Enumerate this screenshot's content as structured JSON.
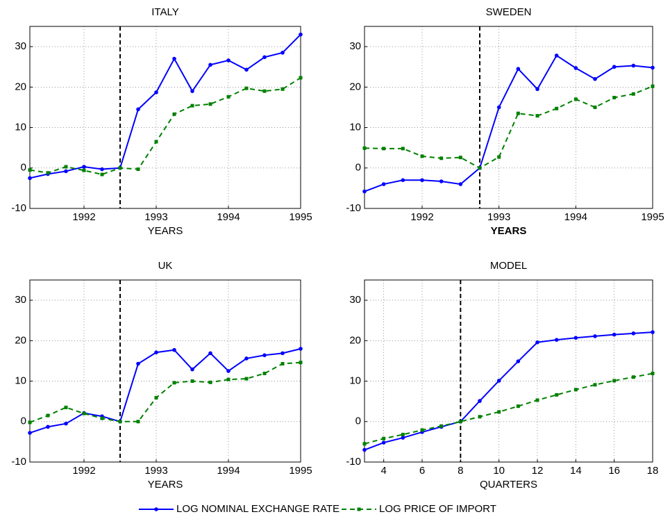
{
  "legend": [
    "LOG NOMINAL EXCHANGE RATE",
    "LOG PRICE OF IMPORT"
  ],
  "chart_data": [
    {
      "type": "line",
      "title": "ITALY",
      "xlabel": "YEARS",
      "grid": true,
      "vline": 1992.5,
      "xlim": [
        1991.25,
        1995
      ],
      "xticks": [
        1992,
        1993,
        1994,
        1995
      ],
      "ylim": [
        -10,
        35
      ],
      "yticks": [
        -10,
        0,
        10,
        20,
        30
      ],
      "x": [
        1991.25,
        1991.5,
        1991.75,
        1992,
        1992.25,
        1992.5,
        1992.75,
        1993,
        1993.25,
        1993.5,
        1993.75,
        1994,
        1994.25,
        1994.5,
        1994.75,
        1995
      ],
      "series": [
        {
          "color": "#0000ff",
          "style": "solid",
          "values": [
            -2.5,
            -1.5,
            -0.8,
            0.3,
            -0.3,
            0,
            14.5,
            18.7,
            27,
            19,
            25.5,
            26.6,
            24.3,
            27.4,
            28.5,
            33
          ]
        },
        {
          "color": "#008000",
          "style": "dashed",
          "values": [
            -0.5,
            -1.2,
            0.3,
            -0.6,
            -1.6,
            0,
            -0.3,
            6.5,
            13.3,
            15.4,
            15.8,
            17.6,
            19.7,
            19.0,
            19.5,
            22.3
          ]
        }
      ]
    },
    {
      "type": "line",
      "title": "SWEDEN",
      "xlabel": "YEARS",
      "xlabel_bold": true,
      "grid": true,
      "vline": 1992.75,
      "xlim": [
        1991.25,
        1995
      ],
      "xticks": [
        1992,
        1993,
        1994,
        1995
      ],
      "ylim": [
        -10,
        35
      ],
      "yticks": [
        -10,
        0,
        10,
        20,
        30
      ],
      "x": [
        1991.25,
        1991.5,
        1991.75,
        1992,
        1992.25,
        1992.5,
        1992.75,
        1993,
        1993.25,
        1993.5,
        1993.75,
        1994,
        1994.25,
        1994.5,
        1994.75,
        1995
      ],
      "series": [
        {
          "color": "#0000ff",
          "style": "solid",
          "values": [
            -5.8,
            -4,
            -3,
            -3,
            -3.3,
            -4,
            0,
            15,
            24.5,
            19.5,
            27.8,
            24.7,
            22,
            25,
            25.3,
            24.8
          ]
        },
        {
          "color": "#008000",
          "style": "dashed",
          "values": [
            4.9,
            4.8,
            4.8,
            2.9,
            2.4,
            2.6,
            0,
            2.7,
            13.5,
            12.9,
            14.7,
            17,
            15,
            17.4,
            18.3,
            20.2
          ]
        }
      ]
    },
    {
      "type": "line",
      "title": "UK",
      "xlabel": "YEARS",
      "grid": true,
      "vline": 1992.5,
      "xlim": [
        1991.25,
        1995
      ],
      "xticks": [
        1992,
        1993,
        1994,
        1995
      ],
      "ylim": [
        -10,
        35
      ],
      "yticks": [
        -10,
        0,
        10,
        20,
        30
      ],
      "x": [
        1991.25,
        1991.5,
        1991.75,
        1992,
        1992.25,
        1992.5,
        1992.75,
        1993,
        1993.25,
        1993.5,
        1993.75,
        1994,
        1994.25,
        1994.5,
        1994.75,
        1995
      ],
      "series": [
        {
          "color": "#0000ff",
          "style": "solid",
          "values": [
            -2.8,
            -1.3,
            -0.5,
            2.1,
            1.3,
            0,
            14.3,
            17.1,
            17.7,
            12.9,
            16.9,
            12.5,
            15.6,
            16.4,
            16.9,
            18
          ]
        },
        {
          "color": "#008000",
          "style": "dashed",
          "values": [
            -0.2,
            1.5,
            3.5,
            2,
            0.8,
            0,
            0,
            5.9,
            9.6,
            10,
            9.7,
            10.4,
            10.6,
            11.9,
            14.3,
            14.6
          ]
        }
      ]
    },
    {
      "type": "line",
      "title": "MODEL",
      "xlabel": "QUARTERS",
      "grid": true,
      "vline": 8,
      "xlim": [
        3,
        18
      ],
      "xticks": [
        4,
        6,
        8,
        10,
        12,
        14,
        16,
        18
      ],
      "ylim": [
        -10,
        35
      ],
      "yticks": [
        -10,
        0,
        10,
        20,
        30
      ],
      "x": [
        3,
        4,
        5,
        6,
        7,
        8,
        9,
        10,
        11,
        12,
        13,
        14,
        15,
        16,
        17,
        18
      ],
      "series": [
        {
          "color": "#0000ff",
          "style": "solid",
          "values": [
            -7,
            -5.2,
            -4,
            -2.6,
            -1.3,
            0,
            5.1,
            10.1,
            14.9,
            19.6,
            20.2,
            20.7,
            21.1,
            21.5,
            21.8,
            22.1
          ]
        },
        {
          "color": "#008000",
          "style": "dashed",
          "values": [
            -5.5,
            -4.2,
            -3.2,
            -2.1,
            -1.1,
            0,
            1.2,
            2.4,
            3.8,
            5.3,
            6.6,
            7.9,
            9.1,
            10.1,
            11,
            11.9
          ]
        }
      ]
    }
  ]
}
